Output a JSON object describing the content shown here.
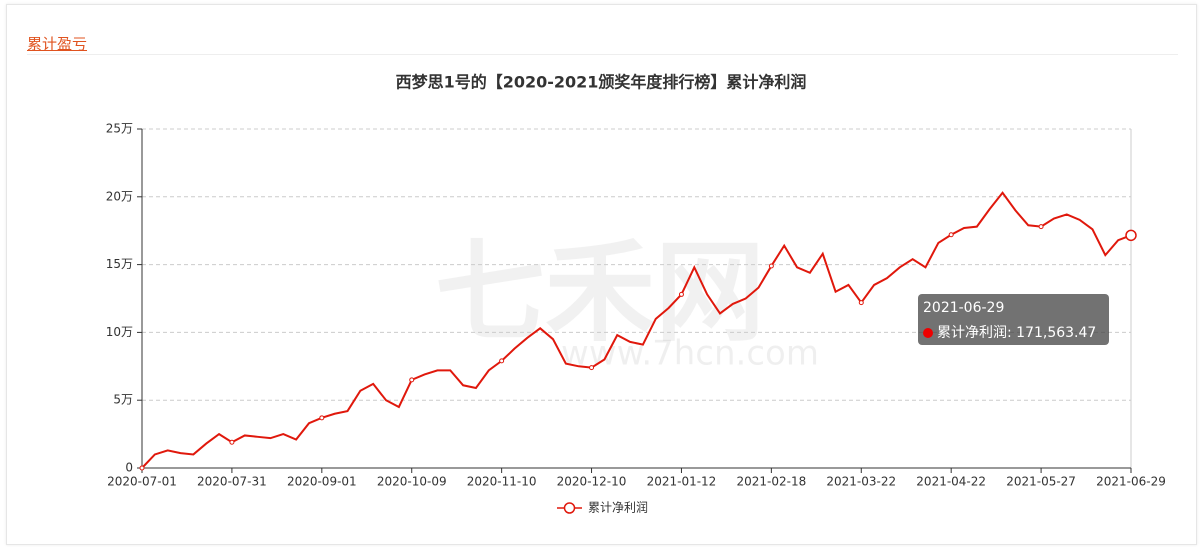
{
  "section_title": "累计盈亏",
  "watermark": {
    "name": "七禾网",
    "url": "www.7hcn.com"
  },
  "chart_data": {
    "type": "line",
    "title": "西梦思1号的【2020-2021颁奖年度排行榜】累计净利润",
    "categories": [
      "2020-07-01",
      null,
      null,
      null,
      null,
      null,
      null,
      "2020-07-31",
      null,
      null,
      null,
      null,
      null,
      null,
      "2020-09-01",
      null,
      null,
      null,
      null,
      null,
      null,
      "2020-10-09",
      null,
      null,
      null,
      null,
      null,
      null,
      "2020-11-10",
      null,
      null,
      null,
      null,
      null,
      null,
      "2020-12-10",
      null,
      null,
      null,
      null,
      null,
      null,
      "2021-01-12",
      null,
      null,
      null,
      null,
      null,
      null,
      "2021-02-18",
      null,
      null,
      null,
      null,
      null,
      null,
      "2021-03-22",
      null,
      null,
      null,
      null,
      null,
      null,
      "2021-04-22",
      null,
      null,
      null,
      null,
      null,
      null,
      "2021-05-27",
      null,
      null,
      null,
      null,
      null,
      null,
      "2021-06-29"
    ],
    "series": [
      {
        "name": "累计净利润",
        "color": "#e0180c",
        "values": [
          0,
          10000,
          13000,
          11000,
          10000,
          18000,
          25000,
          19000,
          24000,
          23000,
          22000,
          25000,
          21000,
          33000,
          37000,
          40000,
          42000,
          57000,
          62000,
          50000,
          45000,
          65000,
          69000,
          72000,
          72000,
          61000,
          59000,
          72000,
          79000,
          88000,
          96000,
          103000,
          95000,
          77000,
          75000,
          74000,
          80000,
          98000,
          93000,
          91000,
          110000,
          118000,
          128000,
          148000,
          128000,
          114000,
          121000,
          125000,
          133000,
          149000,
          164000,
          148000,
          144000,
          158000,
          130000,
          135000,
          122000,
          135000,
          140000,
          148000,
          154000,
          148000,
          166000,
          172000,
          177000,
          178000,
          191000,
          203000,
          190000,
          179000,
          178000,
          184000,
          187000,
          183000,
          176000,
          157000,
          168000,
          171563.47
        ]
      }
    ],
    "ylim": [
      0,
      250000
    ],
    "yticks": [
      0,
      {
        "value": 50000,
        "label": "5万"
      },
      {
        "value": 100000,
        "label": "10万"
      },
      {
        "value": 150000,
        "label": "15万"
      },
      {
        "value": 200000,
        "label": "20万"
      },
      {
        "value": 250000,
        "label": "25万"
      }
    ],
    "grid": true,
    "tooltip": {
      "date": "2021-06-29",
      "text": "累计净利润: 171,563.47"
    }
  }
}
